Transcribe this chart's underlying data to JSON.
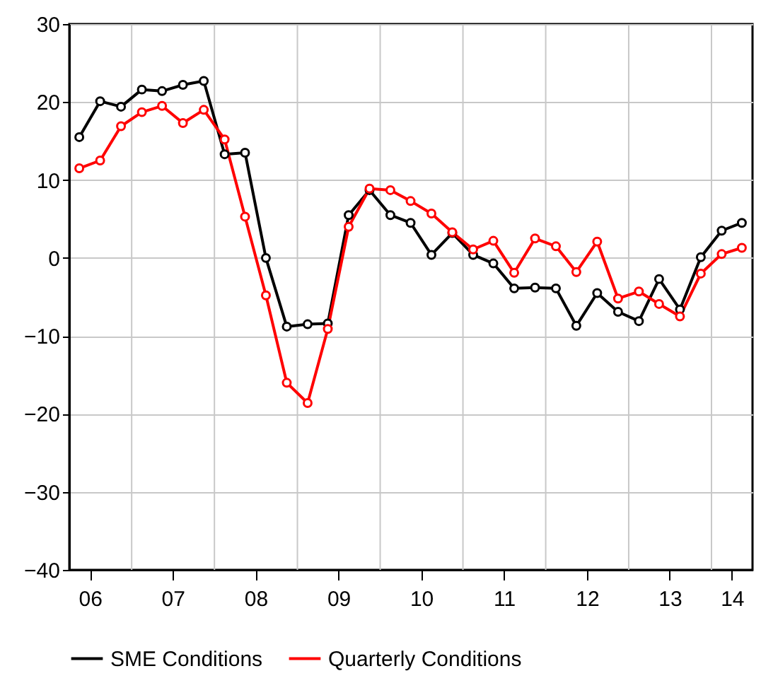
{
  "chart_data": {
    "type": "line",
    "x": [
      "2006-05-15",
      "2006-08-15",
      "2006-11-15",
      "2007-02-15",
      "2007-05-15",
      "2007-08-15",
      "2007-11-15",
      "2008-02-15",
      "2008-05-15",
      "2008-08-15",
      "2008-11-15",
      "2009-02-15",
      "2009-05-15",
      "2009-08-15",
      "2009-11-15",
      "2010-02-15",
      "2010-05-15",
      "2010-08-15",
      "2010-11-15",
      "2011-02-15",
      "2011-05-15",
      "2011-08-15",
      "2011-11-15",
      "2012-02-15",
      "2012-05-15",
      "2012-08-15",
      "2012-11-15",
      "2013-02-15",
      "2013-05-15",
      "2013-08-15",
      "2013-11-15",
      "2014-02-15",
      "2014-05-15"
    ],
    "series": [
      {
        "name": "SME  Conditions",
        "color": "#000000",
        "values": [
          15.5,
          20.1,
          19.4,
          21.6,
          21.4,
          22.2,
          22.7,
          13.3,
          13.5,
          0,
          -8.8,
          -8.5,
          -8.4,
          5.5,
          8.7,
          5.5,
          4.5,
          0.4,
          3.2,
          0.4,
          -0.7,
          -3.9,
          -3.8,
          -3.9,
          -8.7,
          -4.5,
          -6.9,
          -8.1,
          -2.7,
          -6.6,
          0.1,
          3.5,
          4.5
        ]
      },
      {
        "name": "Quarterly Conditions",
        "color": "#ff0000",
        "values": [
          11.5,
          12.5,
          16.9,
          18.7,
          19.5,
          17.3,
          19.0,
          15.2,
          5.3,
          -4.8,
          -16,
          -18.6,
          -9.1,
          4.0,
          8.9,
          8.7,
          7.3,
          5.7,
          3.3,
          1.1,
          2.2,
          -1.9,
          2.5,
          1.5,
          -1.8,
          2.1,
          -5.2,
          -4.3,
          -5.9,
          -7.5,
          -2.0,
          0.5,
          1.3
        ]
      }
    ],
    "xlim": [
      "2006-04-01",
      "2014-07-01"
    ],
    "xticks": [
      {
        "value": "2006-07-01",
        "label": "06"
      },
      {
        "value": "2007-01-01",
        "label": null
      },
      {
        "value": "2007-07-01",
        "label": "07"
      },
      {
        "value": "2008-01-01",
        "label": null
      },
      {
        "value": "2008-07-01",
        "label": "08"
      },
      {
        "value": "2009-01-01",
        "label": null
      },
      {
        "value": "2009-07-01",
        "label": "09"
      },
      {
        "value": "2010-01-01",
        "label": null
      },
      {
        "value": "2010-07-01",
        "label": "10"
      },
      {
        "value": "2011-01-01",
        "label": null
      },
      {
        "value": "2011-07-01",
        "label": "11"
      },
      {
        "value": "2012-01-01",
        "label": null
      },
      {
        "value": "2012-07-01",
        "label": "12"
      },
      {
        "value": "2013-01-01",
        "label": null
      },
      {
        "value": "2013-07-01",
        "label": "13"
      },
      {
        "value": "2014-01-01",
        "label": null
      },
      {
        "value": "2014-04-01",
        "label": "14"
      }
    ],
    "ylim": [
      -40,
      30
    ],
    "yticks": [
      -40,
      -30,
      -20,
      -10,
      0,
      10,
      20,
      30
    ],
    "grid": true,
    "legend": "bottom",
    "marker": "circle",
    "line_style": "solid"
  }
}
